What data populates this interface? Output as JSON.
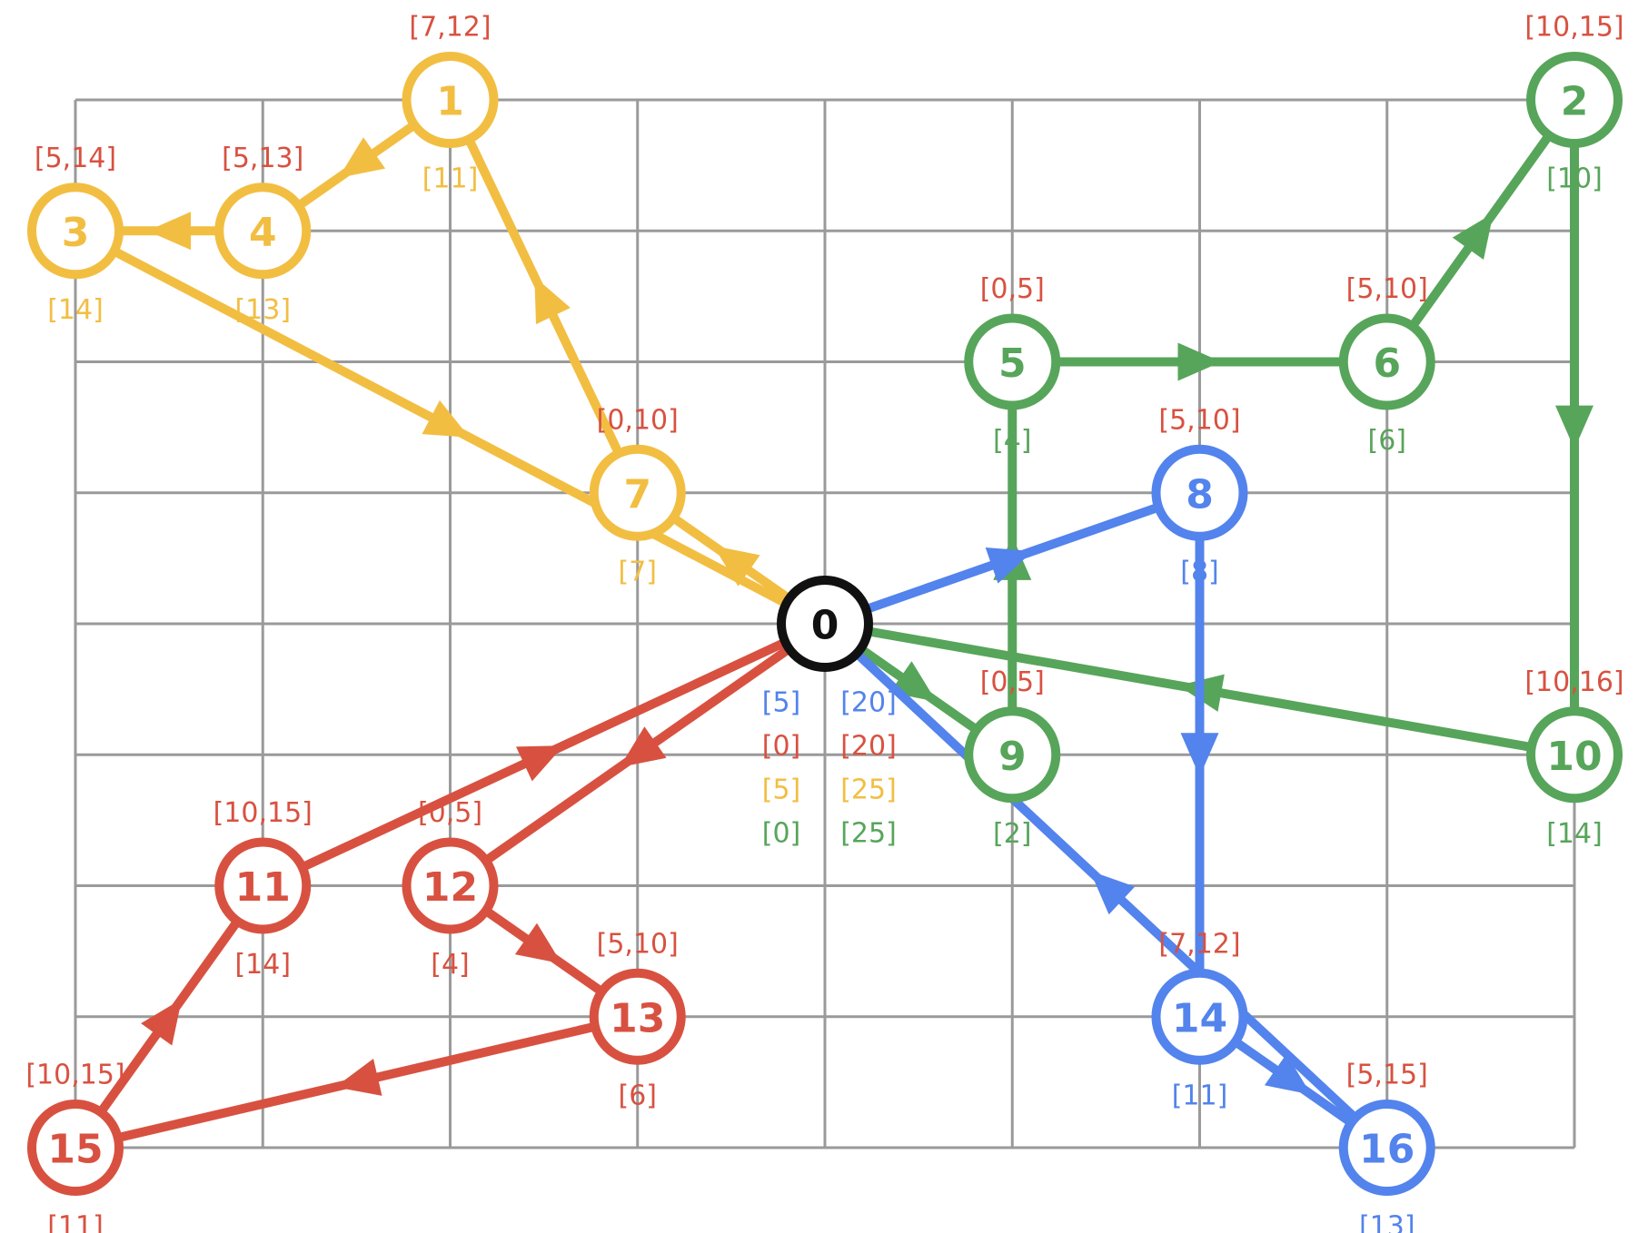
{
  "colors": {
    "yellow": "#F2BE42",
    "green": "#57A55A",
    "blue": "#5383EC",
    "red": "#D85140",
    "black": "#111111",
    "grid": "#9A9A9A"
  },
  "grid": {
    "cols": 8,
    "rows": 8
  },
  "depot": {
    "id": "0",
    "col": 4,
    "row": 4,
    "labels_left": [
      {
        "text": "[5]",
        "color": "blue"
      },
      {
        "text": "[0]",
        "color": "red"
      },
      {
        "text": "[5]",
        "color": "yellow"
      },
      {
        "text": "[0]",
        "color": "green"
      }
    ],
    "labels_right": [
      {
        "text": "[20]",
        "color": "blue"
      },
      {
        "text": "[20]",
        "color": "red"
      },
      {
        "text": "[25]",
        "color": "yellow"
      },
      {
        "text": "[25]",
        "color": "green"
      }
    ]
  },
  "nodes": [
    {
      "id": "1",
      "col": 2,
      "row": 0,
      "color": "yellow",
      "window": "[7,12]",
      "time": "[11]"
    },
    {
      "id": "2",
      "col": 8,
      "row": 0,
      "color": "green",
      "window": "[10,15]",
      "time": "[10]"
    },
    {
      "id": "3",
      "col": 0,
      "row": 1,
      "color": "yellow",
      "window": "[5,14]",
      "time": "[14]"
    },
    {
      "id": "4",
      "col": 1,
      "row": 1,
      "color": "yellow",
      "window": "[5,13]",
      "time": "[13]"
    },
    {
      "id": "5",
      "col": 5,
      "row": 2,
      "color": "green",
      "window": "[0,5]",
      "time": "[4]"
    },
    {
      "id": "6",
      "col": 7,
      "row": 2,
      "color": "green",
      "window": "[5,10]",
      "time": "[6]"
    },
    {
      "id": "7",
      "col": 3,
      "row": 3,
      "color": "yellow",
      "window": "[0,10]",
      "time": "[7]"
    },
    {
      "id": "8",
      "col": 6,
      "row": 3,
      "color": "blue",
      "window": "[5,10]",
      "time": "[8]"
    },
    {
      "id": "9",
      "col": 5,
      "row": 5,
      "color": "green",
      "window": "[0,5]",
      "time": "[2]"
    },
    {
      "id": "10",
      "col": 8,
      "row": 5,
      "color": "green",
      "window": "[10,16]",
      "time": "[14]"
    },
    {
      "id": "11",
      "col": 1,
      "row": 6,
      "color": "red",
      "window": "[10,15]",
      "time": "[14]"
    },
    {
      "id": "12",
      "col": 2,
      "row": 6,
      "color": "red",
      "window": "[0,5]",
      "time": "[4]"
    },
    {
      "id": "13",
      "col": 3,
      "row": 7,
      "color": "red",
      "window": "[5,10]",
      "time": "[6]"
    },
    {
      "id": "14",
      "col": 6,
      "row": 7,
      "color": "blue",
      "window": "[7,12]",
      "time": "[11]"
    },
    {
      "id": "15",
      "col": 0,
      "row": 8,
      "color": "red",
      "window": "[10,15]",
      "time": "[11]"
    },
    {
      "id": "16",
      "col": 7,
      "row": 8,
      "color": "blue",
      "window": "[5,15]",
      "time": "[13]"
    }
  ],
  "routes": [
    {
      "color": "yellow",
      "edges": [
        [
          "0",
          "7"
        ],
        [
          "7",
          "1"
        ],
        [
          "1",
          "4"
        ],
        [
          "4",
          "3"
        ],
        [
          "3",
          "0"
        ]
      ]
    },
    {
      "color": "green",
      "edges": [
        [
          "0",
          "9"
        ],
        [
          "9",
          "5"
        ],
        [
          "5",
          "6"
        ],
        [
          "6",
          "2"
        ],
        [
          "2",
          "10"
        ],
        [
          "10",
          "0"
        ]
      ]
    },
    {
      "color": "blue",
      "edges": [
        [
          "0",
          "8"
        ],
        [
          "8",
          "14"
        ],
        [
          "14",
          "16"
        ],
        [
          "16",
          "0"
        ]
      ]
    },
    {
      "color": "red",
      "edges": [
        [
          "0",
          "12"
        ],
        [
          "12",
          "13"
        ],
        [
          "13",
          "15"
        ],
        [
          "15",
          "11"
        ],
        [
          "11",
          "0"
        ]
      ]
    }
  ]
}
